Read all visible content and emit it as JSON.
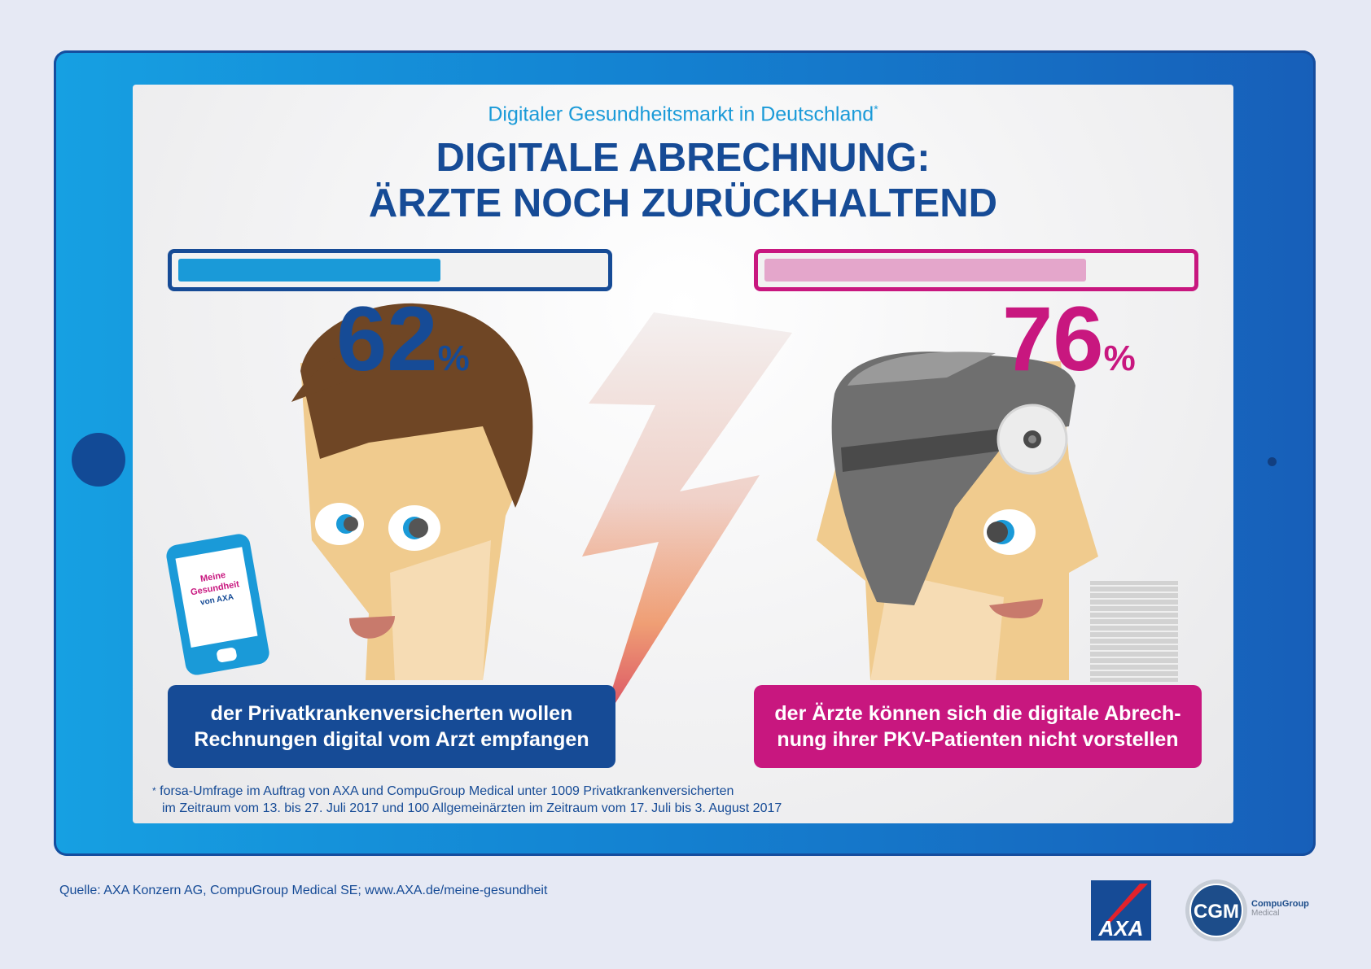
{
  "header": {
    "subtitle": "Digitaler Gesundheitsmarkt in Deutschland",
    "subtitle_mark": "*",
    "title_line1": "DIGITALE ABRECHNUNG:",
    "title_line2": "ÄRZTE NOCH ZURÜCKHALTEND"
  },
  "left_stat": {
    "value": "62",
    "unit": "%",
    "caption_line1": "der Privatkrankenversicherten wollen",
    "caption_line2": "Rechnungen digital vom Arzt empfangen",
    "color": "#164b96",
    "bar_color": "#1a9ad8"
  },
  "right_stat": {
    "value": "76",
    "unit": "%",
    "caption_line1": "der Ärzte können sich die digitale Abrech-",
    "caption_line2": "nung ihrer PKV-Patienten nicht vorstellen",
    "color": "#c8177f",
    "bar_color": "#e4a6cb"
  },
  "phone_app": {
    "line1": "Meine",
    "line2": "Gesundheit",
    "line3": "von AXA"
  },
  "footnote": {
    "mark": "*",
    "line1": "forsa-Umfrage im Auftrag von AXA und CompuGroup Medical unter 1009 Privatkrankenversicherten",
    "line2": "im Zeitraum vom 13. bis 27. Juli 2017 und 100 Allgemeinärzten im Zeitraum vom 17. Juli bis 3. August 2017"
  },
  "source": "Quelle:  AXA Konzern AG, CompuGroup Medical SE; www.AXA.de/meine-gesundheit",
  "logos": {
    "axa": "AXA",
    "cgm": "CGM",
    "cgm_line1": "CompuGroup",
    "cgm_line2": "Medical"
  },
  "chart_data": {
    "type": "bar",
    "orientation": "horizontal",
    "categories": [
      "der Privatkrankenversicherten wollen Rechnungen digital vom Arzt empfangen",
      "der Ärzte können sich die digitale Abrechnung ihrer PKV-Patienten nicht vorstellen"
    ],
    "values": [
      62,
      76
    ],
    "unit": "%",
    "title": "DIGITALE ABRECHNUNG: ÄRZTE NOCH ZURÜCKHALTEND",
    "subtitle": "Digitaler Gesundheitsmarkt in Deutschland",
    "xlim": [
      0,
      100
    ],
    "grid": false,
    "legend": "none"
  }
}
